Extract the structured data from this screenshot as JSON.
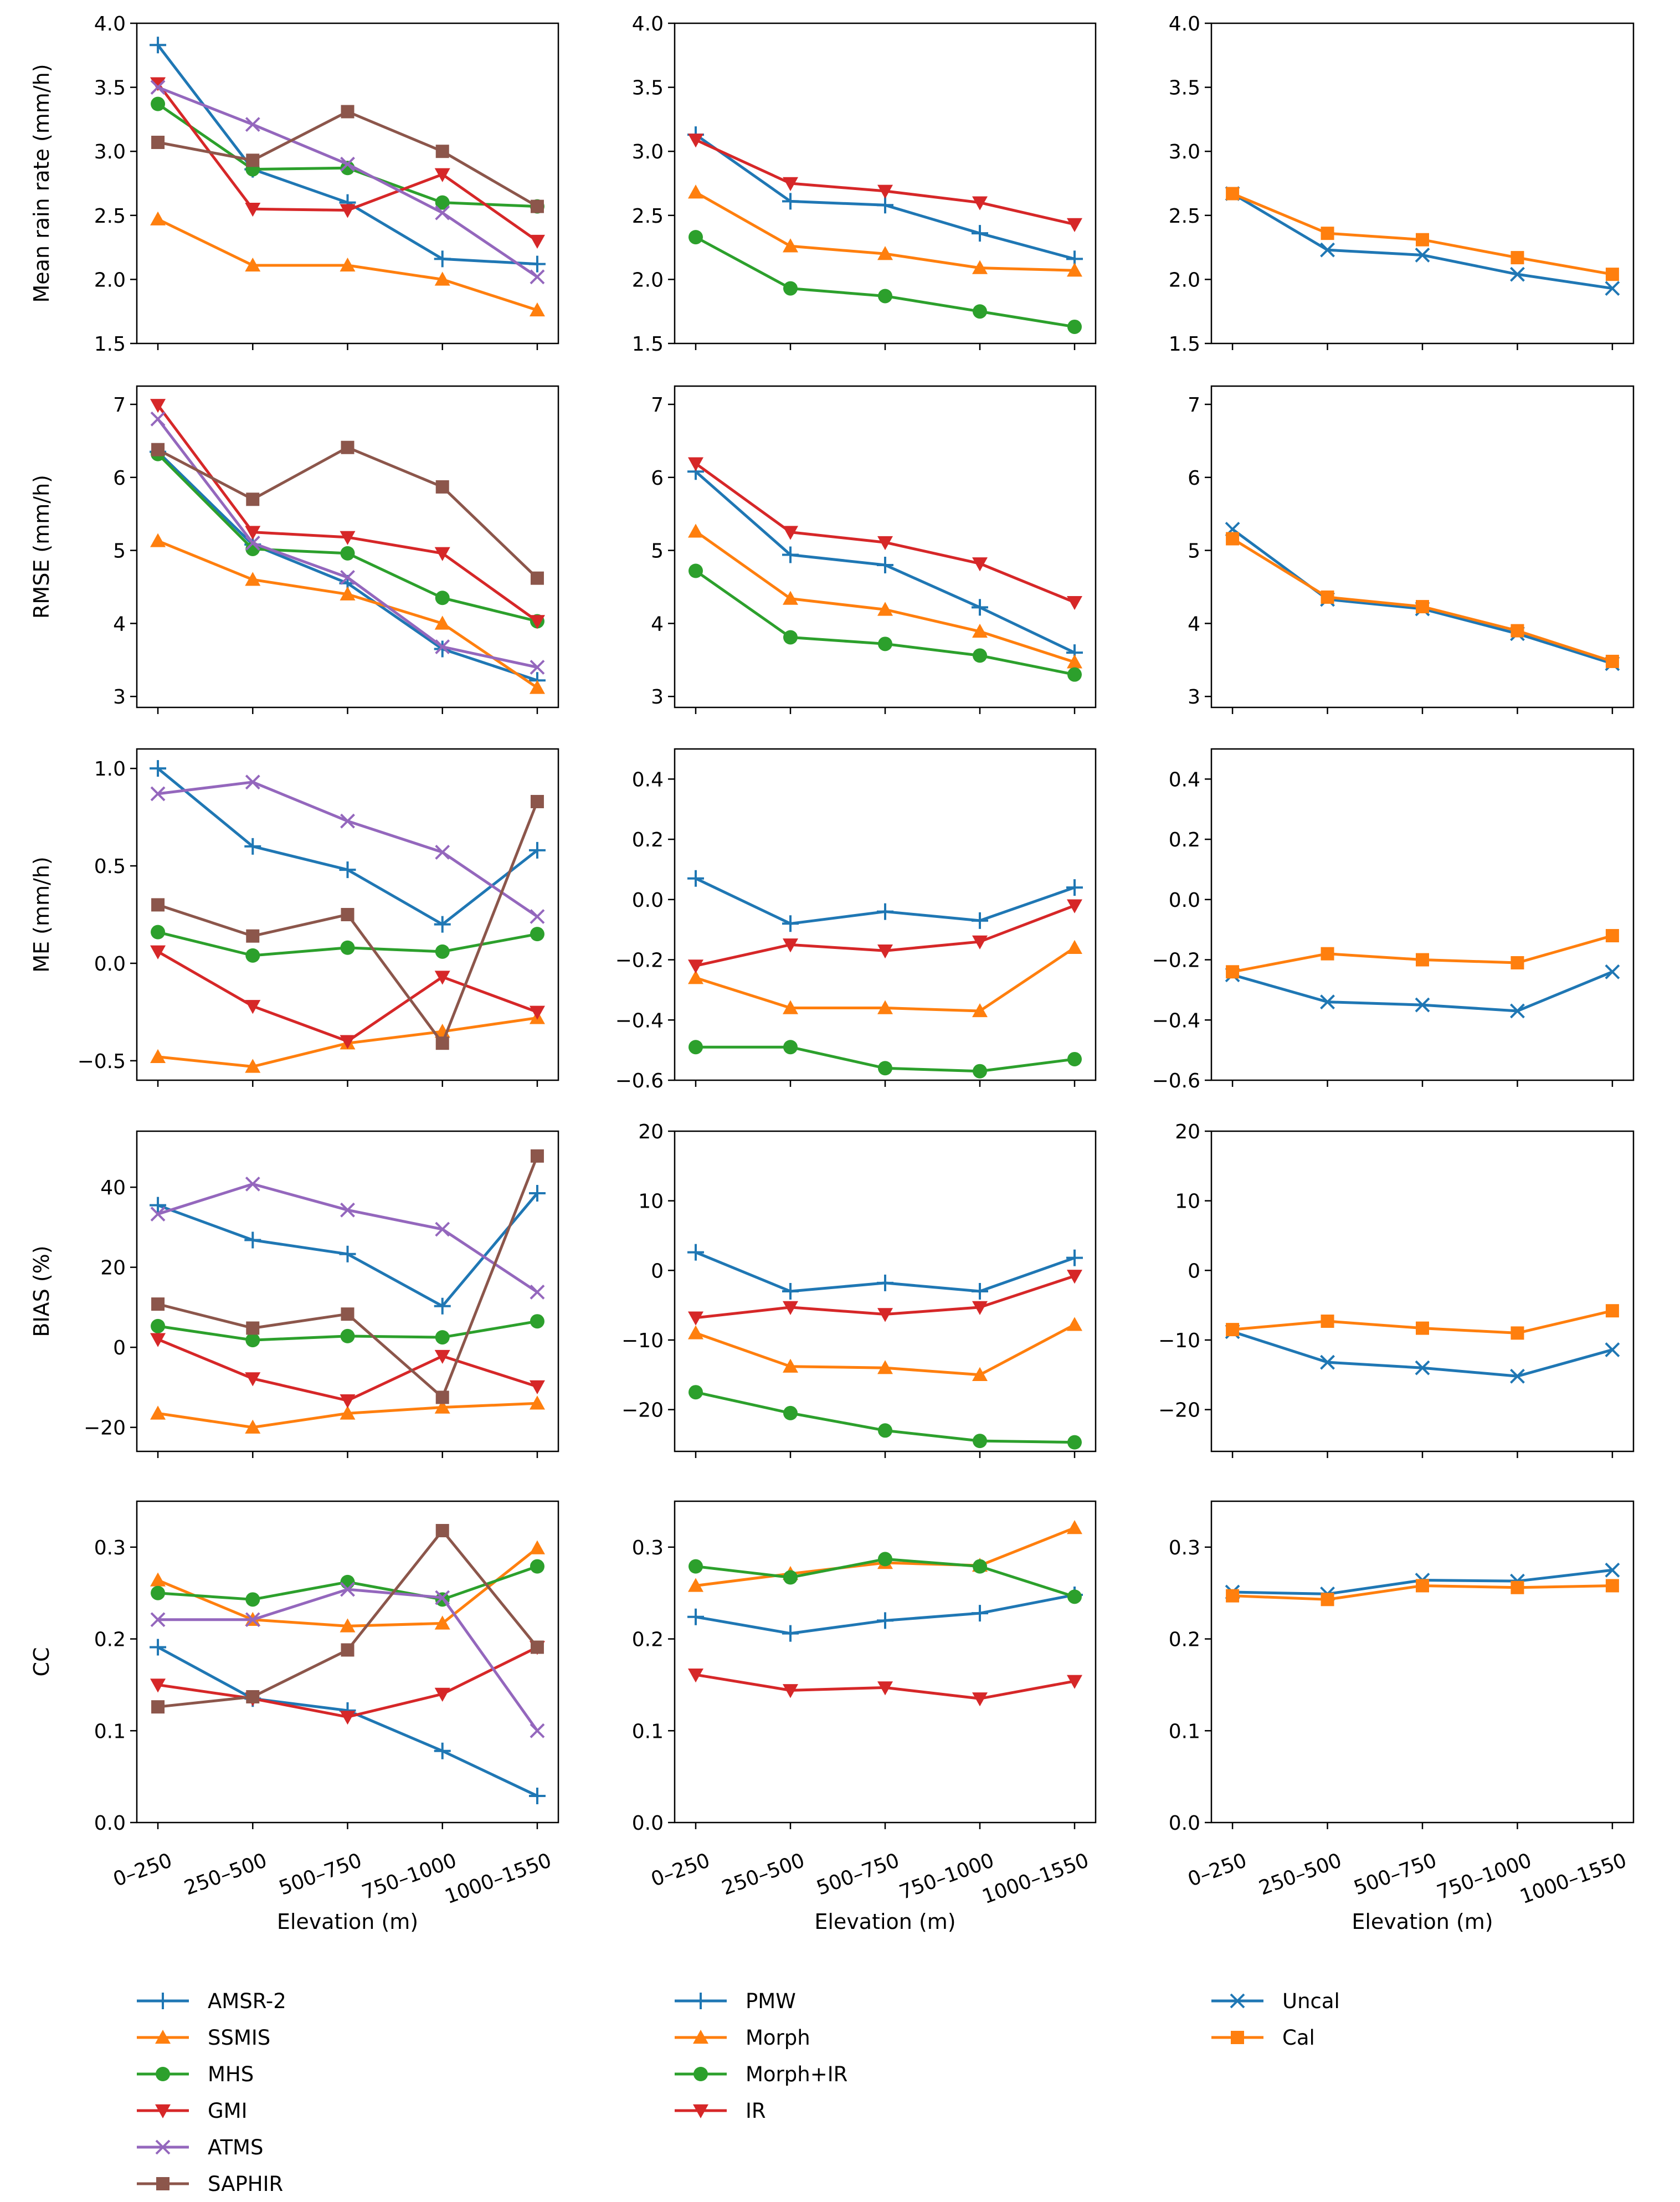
{
  "figure": {
    "categories": [
      "0–250",
      "250–500",
      "500–750",
      "750–1000",
      "1000–1550"
    ],
    "xlabel": "Elevation (m)"
  },
  "styles": {
    "AMSR-2": {
      "color": "#1f77b4",
      "marker": "plus"
    },
    "SSMIS": {
      "color": "#ff7f0e",
      "marker": "triangle-up"
    },
    "MHS": {
      "color": "#2ca02c",
      "marker": "circle"
    },
    "GMI": {
      "color": "#d62728",
      "marker": "triangle-down"
    },
    "ATMS": {
      "color": "#9467bd",
      "marker": "x"
    },
    "SAPHIR": {
      "color": "#8c564b",
      "marker": "square"
    },
    "PMW": {
      "color": "#1f77b4",
      "marker": "plus"
    },
    "Morph": {
      "color": "#ff7f0e",
      "marker": "triangle-up"
    },
    "Morph+IR": {
      "color": "#2ca02c",
      "marker": "circle"
    },
    "IR": {
      "color": "#d62728",
      "marker": "triangle-down"
    },
    "Uncal": {
      "color": "#1f77b4",
      "marker": "x"
    },
    "Cal": {
      "color": "#ff7f0e",
      "marker": "square"
    }
  },
  "legends": [
    [
      "AMSR-2",
      "SSMIS",
      "MHS",
      "GMI",
      "ATMS",
      "SAPHIR"
    ],
    [
      "PMW",
      "Morph",
      "Morph+IR",
      "IR"
    ],
    [
      "Uncal",
      "Cal"
    ]
  ],
  "chart_data": [
    {
      "type": "line",
      "row": 0,
      "col": 0,
      "ylabel": "Mean rain rate (mm/h)",
      "ylim": [
        1.5,
        4.0
      ],
      "yticks": [
        1.5,
        2.0,
        2.5,
        3.0,
        3.5,
        4.0
      ],
      "ytick_labels": [
        "1.5",
        "2.0",
        "2.5",
        "3.0",
        "3.5",
        "4.0"
      ],
      "categories": [
        "0–250",
        "250–500",
        "500–750",
        "750–1000",
        "1000–1550"
      ],
      "series": [
        {
          "name": "AMSR-2",
          "values": [
            3.83,
            2.86,
            2.6,
            2.16,
            2.12
          ]
        },
        {
          "name": "SSMIS",
          "values": [
            2.47,
            2.11,
            2.11,
            2.0,
            1.76
          ]
        },
        {
          "name": "MHS",
          "values": [
            3.37,
            2.86,
            2.87,
            2.6,
            2.57
          ]
        },
        {
          "name": "GMI",
          "values": [
            3.53,
            2.55,
            2.54,
            2.82,
            2.3
          ]
        },
        {
          "name": "ATMS",
          "values": [
            3.5,
            3.21,
            2.9,
            2.52,
            2.02
          ]
        },
        {
          "name": "SAPHIR",
          "values": [
            3.07,
            2.93,
            3.31,
            3.0,
            2.57
          ]
        }
      ]
    },
    {
      "type": "line",
      "row": 0,
      "col": 1,
      "ylabel": "",
      "ylim": [
        1.5,
        4.0
      ],
      "yticks": [
        1.5,
        2.0,
        2.5,
        3.0,
        3.5,
        4.0
      ],
      "ytick_labels": [
        "1.5",
        "2.0",
        "2.5",
        "3.0",
        "3.5",
        "4.0"
      ],
      "categories": [
        "0–250",
        "250–500",
        "500–750",
        "750–1000",
        "1000–1550"
      ],
      "series": [
        {
          "name": "PMW",
          "values": [
            3.13,
            2.61,
            2.58,
            2.36,
            2.16
          ]
        },
        {
          "name": "Morph",
          "values": [
            2.68,
            2.26,
            2.2,
            2.09,
            2.07
          ]
        },
        {
          "name": "Morph+IR",
          "values": [
            2.33,
            1.93,
            1.87,
            1.75,
            1.63
          ]
        },
        {
          "name": "IR",
          "values": [
            3.09,
            2.75,
            2.69,
            2.6,
            2.43
          ]
        }
      ]
    },
    {
      "type": "line",
      "row": 0,
      "col": 2,
      "ylabel": "",
      "ylim": [
        1.5,
        4.0
      ],
      "yticks": [
        1.5,
        2.0,
        2.5,
        3.0,
        3.5,
        4.0
      ],
      "ytick_labels": [
        "1.5",
        "2.0",
        "2.5",
        "3.0",
        "3.5",
        "4.0"
      ],
      "categories": [
        "0–250",
        "250–500",
        "500–750",
        "750–1000",
        "1000–1550"
      ],
      "series": [
        {
          "name": "Uncal",
          "values": [
            2.67,
            2.23,
            2.19,
            2.04,
            1.93
          ]
        },
        {
          "name": "Cal",
          "values": [
            2.67,
            2.36,
            2.31,
            2.17,
            2.04
          ]
        }
      ]
    },
    {
      "type": "line",
      "row": 1,
      "col": 0,
      "ylabel": "RMSE (mm/h)",
      "ylim": [
        2.85,
        7.25
      ],
      "yticks": [
        3,
        4,
        5,
        6,
        7
      ],
      "ytick_labels": [
        "3",
        "4",
        "5",
        "6",
        "7"
      ],
      "categories": [
        "0–250",
        "250–500",
        "500–750",
        "750–1000",
        "1000–1550"
      ],
      "series": [
        {
          "name": "AMSR-2",
          "values": [
            6.35,
            5.08,
            4.55,
            3.65,
            3.22
          ]
        },
        {
          "name": "SSMIS",
          "values": [
            5.13,
            4.6,
            4.4,
            4.0,
            3.12
          ]
        },
        {
          "name": "MHS",
          "values": [
            6.32,
            5.02,
            4.96,
            4.35,
            4.03
          ]
        },
        {
          "name": "GMI",
          "values": [
            6.99,
            5.25,
            5.18,
            4.96,
            4.03
          ]
        },
        {
          "name": "ATMS",
          "values": [
            6.8,
            5.1,
            4.63,
            3.68,
            3.4
          ]
        },
        {
          "name": "SAPHIR",
          "values": [
            6.38,
            5.7,
            6.41,
            5.87,
            4.62
          ]
        }
      ]
    },
    {
      "type": "line",
      "row": 1,
      "col": 1,
      "ylabel": "",
      "ylim": [
        2.85,
        7.25
      ],
      "yticks": [
        3,
        4,
        5,
        6,
        7
      ],
      "ytick_labels": [
        "3",
        "4",
        "5",
        "6",
        "7"
      ],
      "categories": [
        "0–250",
        "250–500",
        "500–750",
        "750–1000",
        "1000–1550"
      ],
      "series": [
        {
          "name": "PMW",
          "values": [
            6.08,
            4.94,
            4.8,
            4.22,
            3.6
          ]
        },
        {
          "name": "Morph",
          "values": [
            5.26,
            4.34,
            4.19,
            3.89,
            3.47
          ]
        },
        {
          "name": "Morph+IR",
          "values": [
            4.72,
            3.81,
            3.72,
            3.56,
            3.3
          ]
        },
        {
          "name": "IR",
          "values": [
            6.19,
            5.25,
            5.11,
            4.82,
            4.29
          ]
        }
      ]
    },
    {
      "type": "line",
      "row": 1,
      "col": 2,
      "ylabel": "",
      "ylim": [
        2.85,
        7.25
      ],
      "yticks": [
        3,
        4,
        5,
        6,
        7
      ],
      "ytick_labels": [
        "3",
        "4",
        "5",
        "6",
        "7"
      ],
      "categories": [
        "0–250",
        "250–500",
        "500–750",
        "750–1000",
        "1000–1550"
      ],
      "series": [
        {
          "name": "Uncal",
          "values": [
            5.29,
            4.33,
            4.2,
            3.86,
            3.45
          ]
        },
        {
          "name": "Cal",
          "values": [
            5.16,
            4.36,
            4.23,
            3.9,
            3.48
          ]
        }
      ]
    },
    {
      "type": "line",
      "row": 2,
      "col": 0,
      "ylabel": "ME (mm/h)",
      "ylim": [
        -0.6,
        1.1
      ],
      "yticks": [
        -0.5,
        0.0,
        0.5,
        1.0
      ],
      "ytick_labels": [
        "−0.5",
        "0.0",
        "0.5",
        "1.0"
      ],
      "categories": [
        "0–250",
        "250–500",
        "500–750",
        "750–1000",
        "1000–1550"
      ],
      "series": [
        {
          "name": "AMSR-2",
          "values": [
            1.0,
            0.6,
            0.48,
            0.2,
            0.58
          ]
        },
        {
          "name": "SSMIS",
          "values": [
            -0.48,
            -0.53,
            -0.41,
            -0.35,
            -0.28
          ]
        },
        {
          "name": "MHS",
          "values": [
            0.16,
            0.04,
            0.08,
            0.06,
            0.15
          ]
        },
        {
          "name": "GMI",
          "values": [
            0.06,
            -0.22,
            -0.4,
            -0.07,
            -0.25
          ]
        },
        {
          "name": "ATMS",
          "values": [
            0.87,
            0.93,
            0.73,
            0.57,
            0.24
          ]
        },
        {
          "name": "SAPHIR",
          "values": [
            0.3,
            0.14,
            0.25,
            -0.41,
            0.83
          ]
        }
      ]
    },
    {
      "type": "line",
      "row": 2,
      "col": 1,
      "ylabel": "",
      "ylim": [
        -0.6,
        0.5
      ],
      "yticks": [
        -0.6,
        -0.4,
        -0.2,
        0.0,
        0.2,
        0.4
      ],
      "ytick_labels": [
        "−0.6",
        "−0.4",
        "−0.2",
        "0.0",
        "0.2",
        "0.4"
      ],
      "categories": [
        "0–250",
        "250–500",
        "500–750",
        "750–1000",
        "1000–1550"
      ],
      "series": [
        {
          "name": "PMW",
          "values": [
            0.07,
            -0.08,
            -0.04,
            -0.07,
            0.04
          ]
        },
        {
          "name": "Morph",
          "values": [
            -0.26,
            -0.36,
            -0.36,
            -0.37,
            -0.16
          ]
        },
        {
          "name": "Morph+IR",
          "values": [
            -0.49,
            -0.49,
            -0.56,
            -0.57,
            -0.53
          ]
        },
        {
          "name": "IR",
          "values": [
            -0.22,
            -0.15,
            -0.17,
            -0.14,
            -0.02
          ]
        }
      ]
    },
    {
      "type": "line",
      "row": 2,
      "col": 2,
      "ylabel": "",
      "ylim": [
        -0.6,
        0.5
      ],
      "yticks": [
        -0.6,
        -0.4,
        -0.2,
        0.0,
        0.2,
        0.4
      ],
      "ytick_labels": [
        "−0.6",
        "−0.4",
        "−0.2",
        "0.0",
        "0.2",
        "0.4"
      ],
      "categories": [
        "0–250",
        "250–500",
        "500–750",
        "750–1000",
        "1000–1550"
      ],
      "series": [
        {
          "name": "Uncal",
          "values": [
            -0.25,
            -0.34,
            -0.35,
            -0.37,
            -0.24
          ]
        },
        {
          "name": "Cal",
          "values": [
            -0.24,
            -0.18,
            -0.2,
            -0.21,
            -0.12
          ]
        }
      ]
    },
    {
      "type": "line",
      "row": 3,
      "col": 0,
      "ylabel": "BIAS (%)",
      "ylim": [
        -26,
        54
      ],
      "yticks": [
        -20,
        0,
        20,
        40
      ],
      "ytick_labels": [
        "−20",
        "0",
        "20",
        "40"
      ],
      "categories": [
        "0–250",
        "250–500",
        "500–750",
        "750–1000",
        "1000–1550"
      ],
      "series": [
        {
          "name": "AMSR-2",
          "values": [
            35.5,
            26.8,
            23.3,
            10.3,
            38.5
          ]
        },
        {
          "name": "SSMIS",
          "values": [
            -16.5,
            -20.0,
            -16.5,
            -15.0,
            -14.0
          ]
        },
        {
          "name": "MHS",
          "values": [
            5.3,
            1.8,
            2.8,
            2.5,
            6.5
          ]
        },
        {
          "name": "GMI",
          "values": [
            2.0,
            -7.8,
            -13.3,
            -2.2,
            -9.8
          ]
        },
        {
          "name": "ATMS",
          "values": [
            33.3,
            40.8,
            34.3,
            29.5,
            13.8
          ]
        },
        {
          "name": "SAPHIR",
          "values": [
            10.8,
            4.8,
            8.3,
            -12.5,
            47.8
          ]
        }
      ]
    },
    {
      "type": "line",
      "row": 3,
      "col": 1,
      "ylabel": "",
      "ylim": [
        -26,
        20
      ],
      "yticks": [
        -20,
        -10,
        0,
        10,
        20
      ],
      "ytick_labels": [
        "−20",
        "−10",
        "0",
        "10",
        "20"
      ],
      "categories": [
        "0–250",
        "250–500",
        "500–750",
        "750–1000",
        "1000–1550"
      ],
      "series": [
        {
          "name": "PMW",
          "values": [
            2.6,
            -3.0,
            -1.8,
            -3.0,
            1.8
          ]
        },
        {
          "name": "Morph",
          "values": [
            -9.0,
            -13.8,
            -14.0,
            -15.0,
            -7.8
          ]
        },
        {
          "name": "Morph+IR",
          "values": [
            -17.5,
            -20.5,
            -23.0,
            -24.5,
            -24.7
          ]
        },
        {
          "name": "IR",
          "values": [
            -6.8,
            -5.3,
            -6.3,
            -5.3,
            -0.8
          ]
        }
      ]
    },
    {
      "type": "line",
      "row": 3,
      "col": 2,
      "ylabel": "",
      "ylim": [
        -26,
        20
      ],
      "yticks": [
        -20,
        -10,
        0,
        10,
        20
      ],
      "ytick_labels": [
        "−20",
        "−10",
        "0",
        "10",
        "20"
      ],
      "categories": [
        "0–250",
        "250–500",
        "500–750",
        "750–1000",
        "1000–1550"
      ],
      "series": [
        {
          "name": "Uncal",
          "values": [
            -8.8,
            -13.2,
            -14.0,
            -15.2,
            -11.4
          ]
        },
        {
          "name": "Cal",
          "values": [
            -8.5,
            -7.3,
            -8.3,
            -9.0,
            -5.8
          ]
        }
      ]
    },
    {
      "type": "line",
      "row": 4,
      "col": 0,
      "ylabel": "CC",
      "ylim": [
        0.0,
        0.35
      ],
      "yticks": [
        0.0,
        0.1,
        0.2,
        0.3
      ],
      "ytick_labels": [
        "0.0",
        "0.1",
        "0.2",
        "0.3"
      ],
      "categories": [
        "0–250",
        "250–500",
        "500–750",
        "750–1000",
        "1000–1550"
      ],
      "series": [
        {
          "name": "AMSR-2",
          "values": [
            0.191,
            0.135,
            0.122,
            0.078,
            0.029
          ]
        },
        {
          "name": "SSMIS",
          "values": [
            0.264,
            0.221,
            0.214,
            0.217,
            0.299
          ]
        },
        {
          "name": "MHS",
          "values": [
            0.25,
            0.243,
            0.262,
            0.243,
            0.279
          ]
        },
        {
          "name": "GMI",
          "values": [
            0.15,
            0.135,
            0.115,
            0.14,
            0.191
          ]
        },
        {
          "name": "ATMS",
          "values": [
            0.221,
            0.221,
            0.254,
            0.245,
            0.1
          ]
        },
        {
          "name": "SAPHIR",
          "values": [
            0.126,
            0.137,
            0.188,
            0.318,
            0.191
          ]
        }
      ]
    },
    {
      "type": "line",
      "row": 4,
      "col": 1,
      "ylabel": "",
      "ylim": [
        0.0,
        0.35
      ],
      "yticks": [
        0.0,
        0.1,
        0.2,
        0.3
      ],
      "ytick_labels": [
        "0.0",
        "0.1",
        "0.2",
        "0.3"
      ],
      "categories": [
        "0–250",
        "250–500",
        "500–750",
        "750–1000",
        "1000–1550"
      ],
      "series": [
        {
          "name": "PMW",
          "values": [
            0.224,
            0.206,
            0.22,
            0.228,
            0.248
          ]
        },
        {
          "name": "Morph",
          "values": [
            0.258,
            0.271,
            0.283,
            0.28,
            0.321
          ]
        },
        {
          "name": "Morph+IR",
          "values": [
            0.279,
            0.267,
            0.287,
            0.279,
            0.246
          ]
        },
        {
          "name": "IR",
          "values": [
            0.161,
            0.144,
            0.147,
            0.135,
            0.154
          ]
        }
      ]
    },
    {
      "type": "line",
      "row": 4,
      "col": 2,
      "ylabel": "",
      "ylim": [
        0.0,
        0.35
      ],
      "yticks": [
        0.0,
        0.1,
        0.2,
        0.3
      ],
      "ytick_labels": [
        "0.0",
        "0.1",
        "0.2",
        "0.3"
      ],
      "categories": [
        "0–250",
        "250–500",
        "500–750",
        "750–1000",
        "1000–1550"
      ],
      "series": [
        {
          "name": "Uncal",
          "values": [
            0.251,
            0.249,
            0.264,
            0.263,
            0.275
          ]
        },
        {
          "name": "Cal",
          "values": [
            0.247,
            0.243,
            0.258,
            0.256,
            0.258
          ]
        }
      ]
    }
  ]
}
